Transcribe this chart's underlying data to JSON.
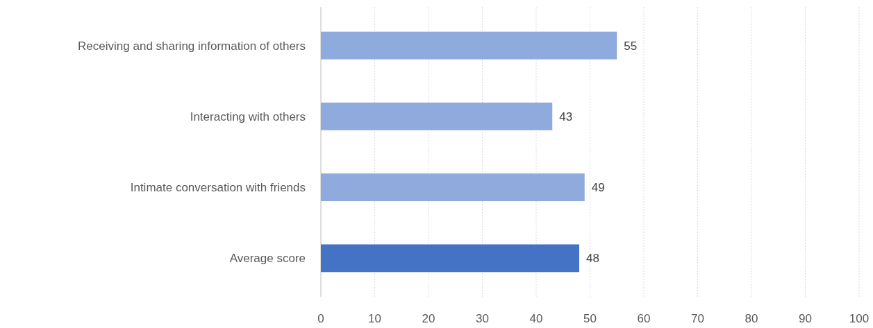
{
  "chart_data": {
    "type": "bar",
    "orientation": "horizontal",
    "categories": [
      "Receiving and sharing information of others",
      "Interacting with others",
      "Intimate conversation with friends",
      "Average score"
    ],
    "values": [
      55,
      43,
      49,
      48
    ],
    "colors": [
      "#8faadc",
      "#8faadc",
      "#8faadc",
      "#4472c4"
    ],
    "xlim": [
      0,
      100
    ],
    "xticks": [
      0,
      10,
      20,
      30,
      40,
      50,
      60,
      70,
      80,
      90,
      100
    ],
    "grid": "x",
    "data_labels": true
  }
}
